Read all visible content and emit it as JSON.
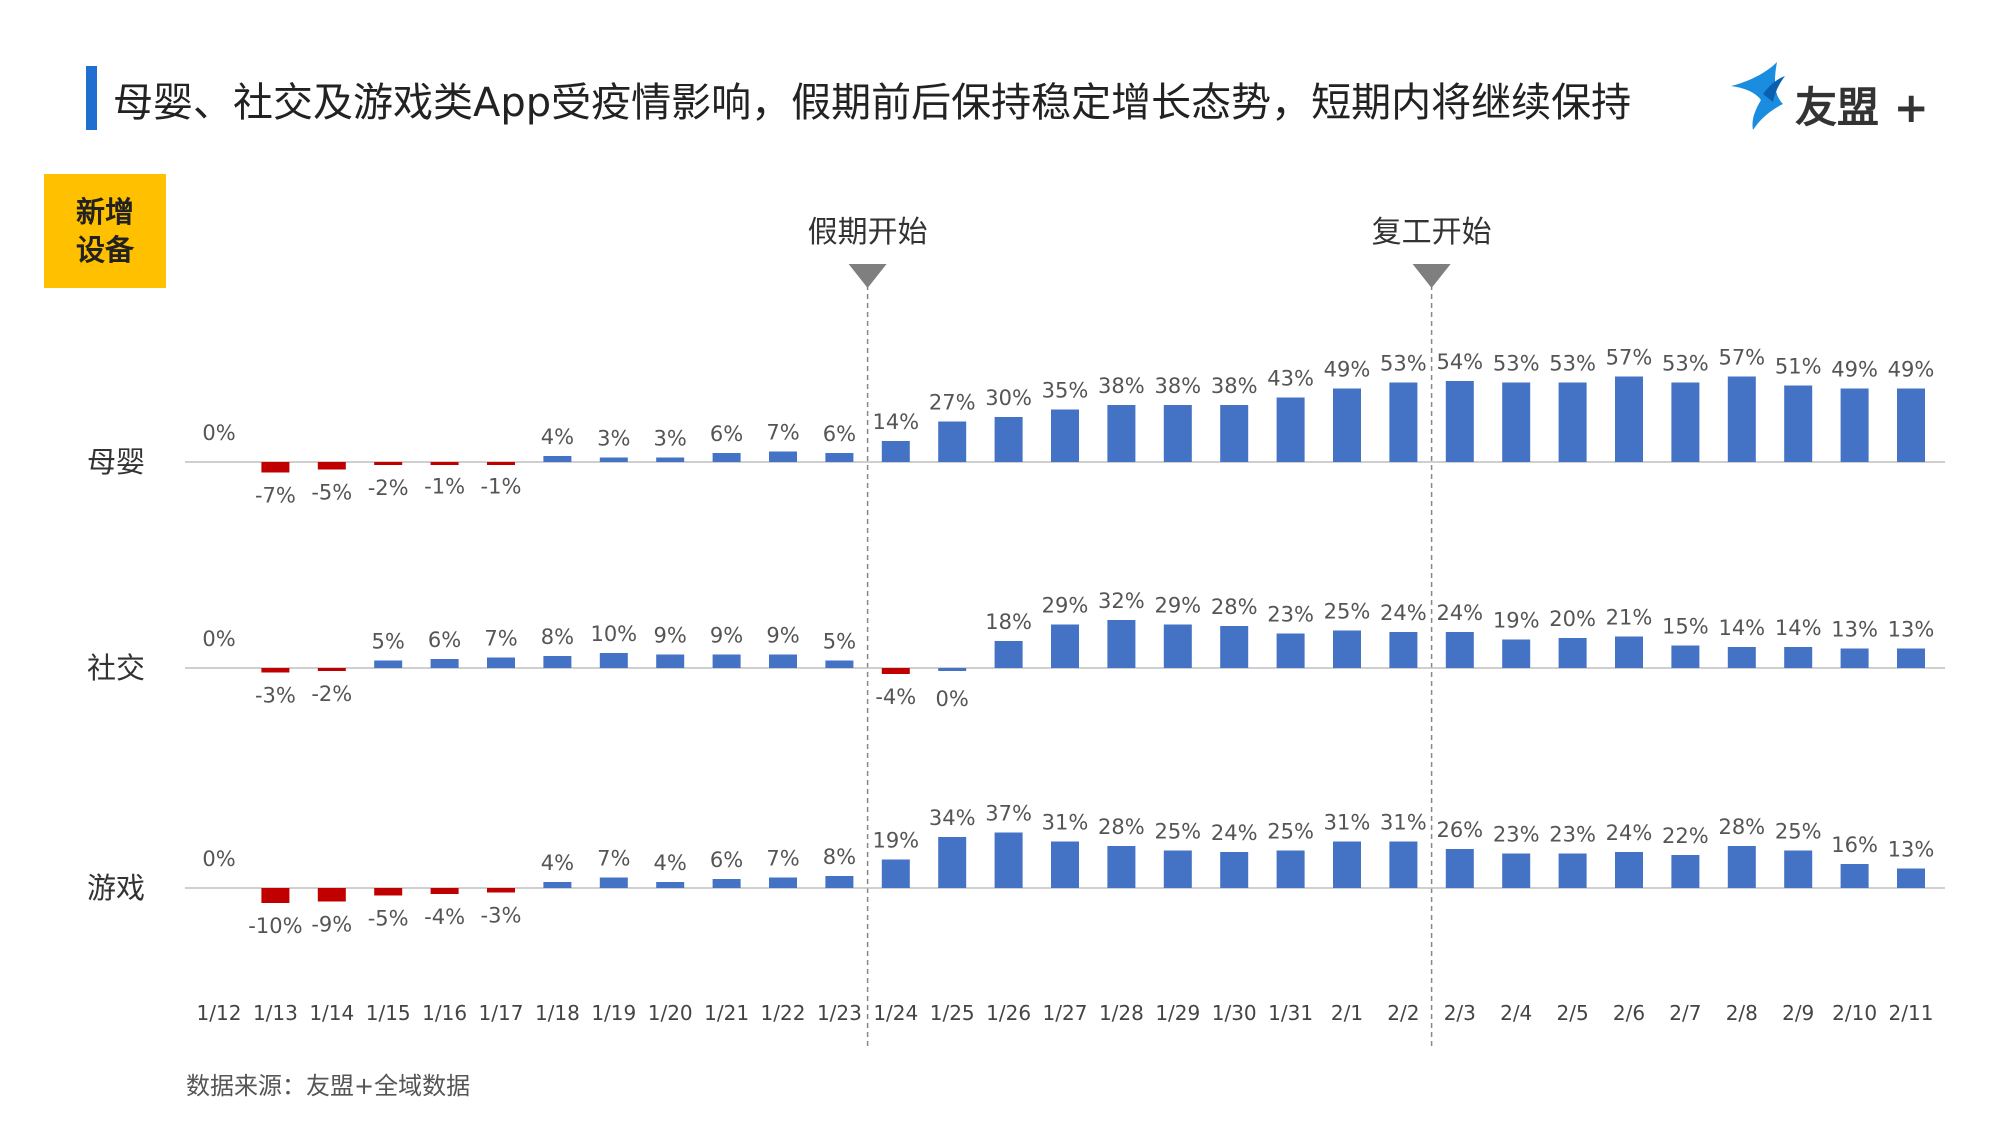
{
  "header": {
    "title": "母婴、社交及游戏类App受疫情影响，假期前后保持稳定增长态势，短期内将继续保持",
    "logo_text": "友盟 +"
  },
  "badge": {
    "line1": "新增",
    "line2": "设备"
  },
  "source": "数据来源：友盟+全域数据",
  "colors": {
    "positive": "#4472c4",
    "negative": "#c00000",
    "accent": "#1f6fd0",
    "badge": "#ffc000"
  },
  "chart_data": {
    "type": "bar",
    "categories": [
      "1/12",
      "1/13",
      "1/14",
      "1/15",
      "1/16",
      "1/17",
      "1/18",
      "1/19",
      "1/20",
      "1/21",
      "1/22",
      "1/23",
      "1/24",
      "1/25",
      "1/26",
      "1/27",
      "1/28",
      "1/29",
      "1/30",
      "1/31",
      "2/1",
      "2/2",
      "2/3",
      "2/4",
      "2/5",
      "2/6",
      "2/7",
      "2/8",
      "2/9",
      "2/10",
      "2/11"
    ],
    "series": [
      {
        "name": "母婴",
        "values": [
          0,
          -7,
          -5,
          -2,
          -1,
          -1,
          4,
          3,
          3,
          6,
          7,
          6,
          14,
          27,
          30,
          35,
          38,
          38,
          38,
          43,
          49,
          53,
          54,
          53,
          53,
          57,
          53,
          57,
          51,
          49,
          49
        ]
      },
      {
        "name": "社交",
        "values": [
          0,
          -3,
          -2,
          5,
          6,
          7,
          8,
          10,
          9,
          9,
          9,
          5,
          -4,
          0,
          18,
          29,
          32,
          29,
          28,
          23,
          25,
          24,
          24,
          19,
          20,
          21,
          15,
          14,
          14,
          13,
          13
        ]
      },
      {
        "name": "游戏",
        "values": [
          0,
          -10,
          -9,
          -5,
          -4,
          -3,
          4,
          7,
          4,
          6,
          7,
          8,
          19,
          34,
          37,
          31,
          28,
          25,
          24,
          25,
          31,
          31,
          26,
          23,
          23,
          24,
          22,
          28,
          25,
          16,
          13
        ]
      }
    ],
    "unit": "%",
    "markers": [
      {
        "label": "假期开始",
        "between": [
          "1/23",
          "1/24"
        ]
      },
      {
        "label": "复工开始",
        "between": [
          "2/2",
          "2/3"
        ]
      }
    ]
  }
}
